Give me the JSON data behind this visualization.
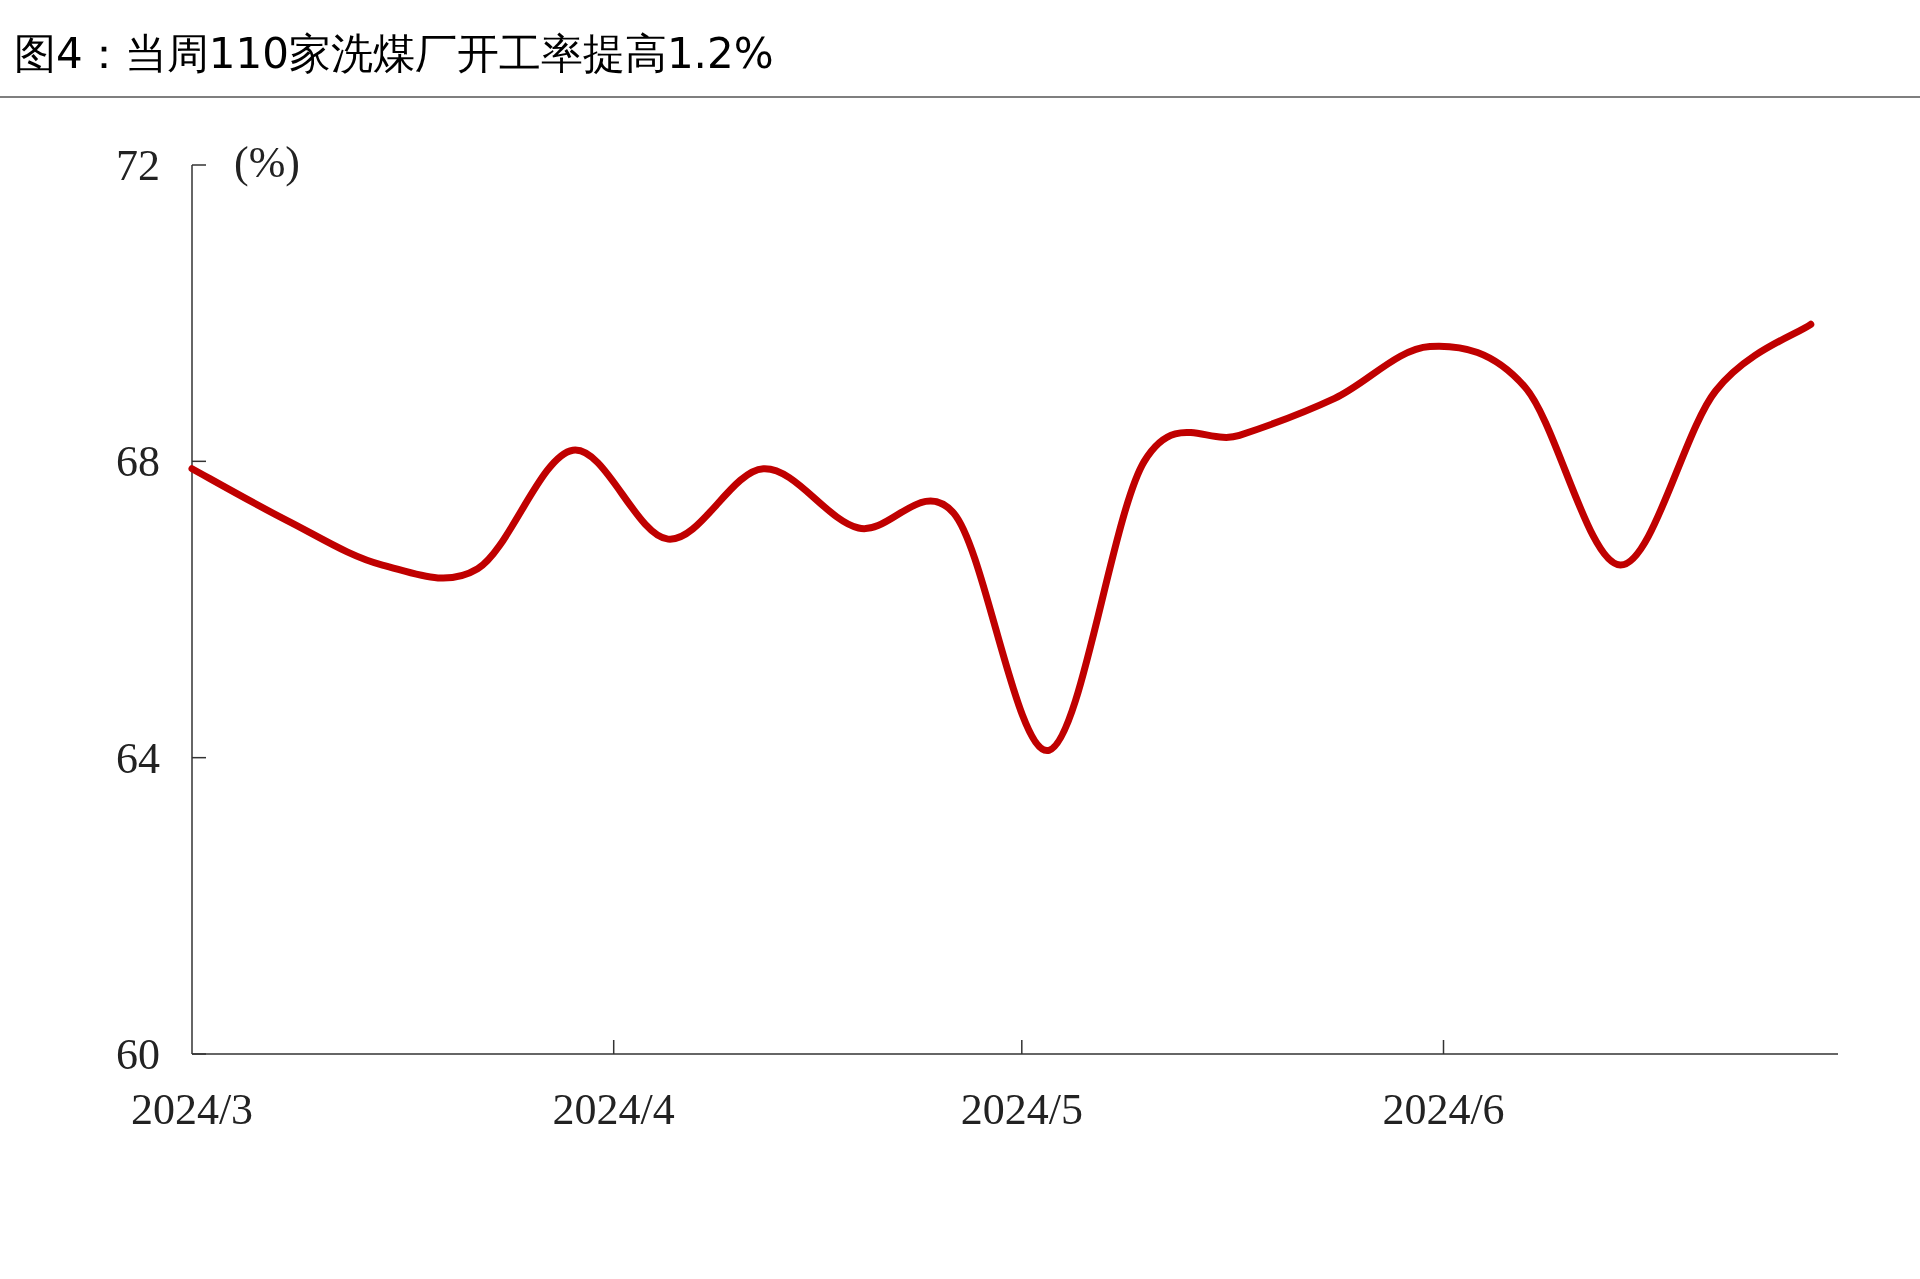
{
  "chart_data": {
    "type": "line",
    "title": "图4：当周110家洗煤厂开工率提高1.2%",
    "ylabel": "(%)",
    "x": [
      "2024-03-01",
      "2024-03-08",
      "2024-03-15",
      "2024-03-22",
      "2024-03-29",
      "2024-04-05",
      "2024-04-12",
      "2024-04-19",
      "2024-04-26",
      "2024-05-03",
      "2024-05-10",
      "2024-05-17",
      "2024-05-24",
      "2024-05-31",
      "2024-06-07",
      "2024-06-14",
      "2024-06-21",
      "2024-06-28"
    ],
    "series": [
      {
        "color": "#c00000",
        "values": [
          67.9,
          67.2,
          66.6,
          66.55,
          68.15,
          66.95,
          67.9,
          67.1,
          67.3,
          64.1,
          68.0,
          68.35,
          68.85,
          69.55,
          69.0,
          66.6,
          68.95,
          69.85
        ]
      }
    ],
    "xlim": [
      "2024-03-01",
      "2024-06-30"
    ],
    "xticks": [
      {
        "value": "2024-03-01",
        "label": "2024/3"
      },
      {
        "value": "2024-04-01",
        "label": "2024/4"
      },
      {
        "value": "2024-05-01",
        "label": "2024/5"
      },
      {
        "value": "2024-06-01",
        "label": "2024/6"
      }
    ],
    "ylim": [
      60,
      72
    ],
    "yticks": [
      60,
      64,
      68,
      72
    ],
    "marker": "none",
    "line_style": "solid"
  }
}
